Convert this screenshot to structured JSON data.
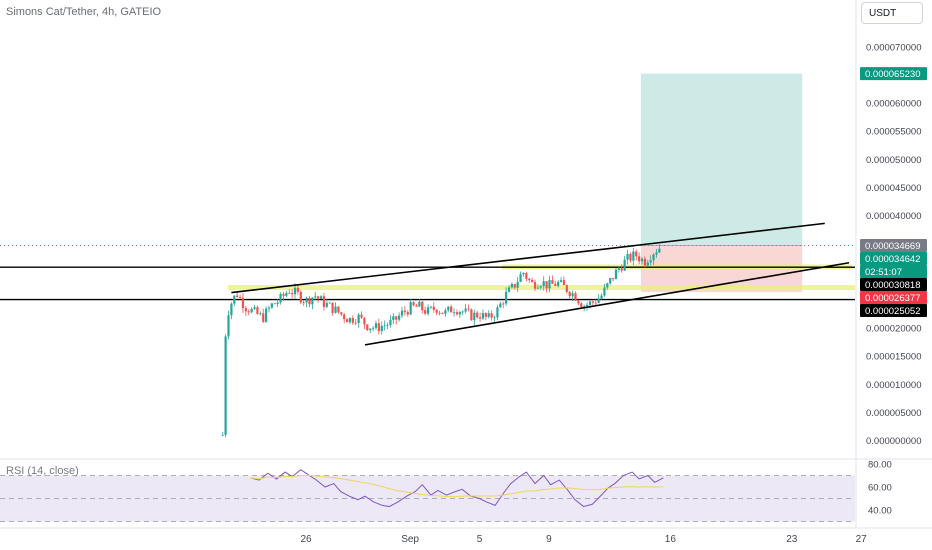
{
  "header": {
    "symbol_title": "Simons Cat/Tether, 4h, GATEIO",
    "currency_button": "USDT",
    "rsi_title": "RSI (14, close)"
  },
  "colors": {
    "up": "#26a69a",
    "down": "#ef5350",
    "profit_zone": "#cdeae7",
    "loss_zone": "#f9d7d5",
    "rsi_line": "#7e57c2",
    "rsi_ma": "#f0d55b",
    "rsi_band": "#ece8f6",
    "highlight": "#e8f07a"
  },
  "price_axis": {
    "ticks": [
      "0.000070000",
      "0.000065000",
      "0.000060000",
      "0.000055000",
      "0.000050000",
      "0.000045000",
      "0.000040000",
      "0.000035000",
      "0.000030000",
      "0.000025000",
      "0.000020000",
      "0.000015000",
      "0.000010000",
      "0.000005000",
      "0.000000000"
    ]
  },
  "badges": [
    {
      "text": "0.000065230",
      "bg": "#089981",
      "fg": "#ffffff",
      "value": 6.523e-05
    },
    {
      "text": "0.000034669",
      "bg": "#787b86",
      "fg": "#ffffff",
      "value": 3.4669e-05
    },
    {
      "text": "0.000034642",
      "bg": "#089981",
      "fg": "#ffffff",
      "value": 3.4642e-05
    },
    {
      "text": "02:51:07",
      "bg": "#089981",
      "fg": "#ffffff",
      "value": 3.29e-05
    },
    {
      "text": "0.000030818",
      "bg": "#000000",
      "fg": "#ffffff",
      "value": 3.0818e-05
    },
    {
      "text": "0.000026377",
      "bg": "#f23645",
      "fg": "#ffffff",
      "value": 2.6377e-05
    },
    {
      "text": "0.000025052",
      "bg": "#000000",
      "fg": "#ffffff",
      "value": 2.5052e-05
    }
  ],
  "time_axis": {
    "labels": [
      {
        "text": "26",
        "day": 26
      },
      {
        "text": "Sep",
        "day": 32
      },
      {
        "text": "5",
        "day": 36
      },
      {
        "text": "9",
        "day": 40
      },
      {
        "text": "16",
        "day": 47
      },
      {
        "text": "23",
        "day": 54
      },
      {
        "text": "27",
        "day": 58
      }
    ]
  },
  "rsi_axis": {
    "ticks": [
      "80.00",
      "60.00",
      "40.00"
    ]
  },
  "chart_data": {
    "type": "candlestick",
    "title": "Simons Cat/Tether, 4h, GATEIO",
    "x_unit": "days (Aug 1 = day 1, Sep 1 = day 32)",
    "ylim": [
      0,
      7e-05
    ],
    "position": {
      "entry": 3.4669e-05,
      "target": 6.523e-05,
      "stop": 2.6377e-05,
      "start_day": 45.3,
      "end_day": 54.6
    },
    "horizontal_levels": [
      3.0818e-05,
      2.5052e-05
    ],
    "highlight_levels": [
      3.085e-05,
      2.72e-05
    ],
    "trendlines": [
      {
        "from": [
          21.7,
          2.63e-05
        ],
        "to": [
          55.9,
          3.86e-05
        ]
      },
      {
        "from": [
          29.4,
          1.7e-05
        ],
        "to": [
          57.3,
          3.16e-05
        ]
      }
    ],
    "close_path": [
      {
        "day": 21.2,
        "close": 1e-06
      },
      {
        "day": 21.4,
        "close": 2.2e-05
      },
      {
        "day": 21.7,
        "close": 2.45e-05
      },
      {
        "day": 22.0,
        "close": 2.62e-05
      },
      {
        "day": 22.5,
        "close": 2.38e-05
      },
      {
        "day": 23.0,
        "close": 2.28e-05
      },
      {
        "day": 23.5,
        "close": 2.18e-05
      },
      {
        "day": 24.0,
        "close": 2.4e-05
      },
      {
        "day": 24.5,
        "close": 2.5e-05
      },
      {
        "day": 25.0,
        "close": 2.68e-05
      },
      {
        "day": 25.5,
        "close": 2.6e-05
      },
      {
        "day": 26.0,
        "close": 2.48e-05
      },
      {
        "day": 26.5,
        "close": 2.58e-05
      },
      {
        "day": 27.0,
        "close": 2.45e-05
      },
      {
        "day": 27.5,
        "close": 2.36e-05
      },
      {
        "day": 28.0,
        "close": 2.25e-05
      },
      {
        "day": 28.5,
        "close": 2.15e-05
      },
      {
        "day": 29.0,
        "close": 2.2e-05
      },
      {
        "day": 29.5,
        "close": 2.05e-05
      },
      {
        "day": 30.0,
        "close": 2e-05
      },
      {
        "day": 30.5,
        "close": 2.05e-05
      },
      {
        "day": 31.0,
        "close": 2.1e-05
      },
      {
        "day": 31.5,
        "close": 2.25e-05
      },
      {
        "day": 32.0,
        "close": 2.36e-05
      },
      {
        "day": 32.5,
        "close": 2.38e-05
      },
      {
        "day": 33.0,
        "close": 2.28e-05
      },
      {
        "day": 33.5,
        "close": 2.36e-05
      },
      {
        "day": 34.0,
        "close": 2.26e-05
      },
      {
        "day": 34.5,
        "close": 2.36e-05
      },
      {
        "day": 35.0,
        "close": 2.3e-05
      },
      {
        "day": 35.5,
        "close": 2.22e-05
      },
      {
        "day": 36.0,
        "close": 2.24e-05
      },
      {
        "day": 36.5,
        "close": 2.16e-05
      },
      {
        "day": 37.0,
        "close": 2.3e-05
      },
      {
        "day": 37.5,
        "close": 2.58e-05
      },
      {
        "day": 38.0,
        "close": 2.75e-05
      },
      {
        "day": 38.5,
        "close": 3e-05
      },
      {
        "day": 39.0,
        "close": 2.78e-05
      },
      {
        "day": 39.5,
        "close": 2.83e-05
      },
      {
        "day": 40.0,
        "close": 2.75e-05
      },
      {
        "day": 40.5,
        "close": 2.8e-05
      },
      {
        "day": 41.0,
        "close": 2.7e-05
      },
      {
        "day": 41.5,
        "close": 2.58e-05
      },
      {
        "day": 42.0,
        "close": 2.4e-05
      },
      {
        "day": 42.5,
        "close": 2.45e-05
      },
      {
        "day": 43.0,
        "close": 2.56e-05
      },
      {
        "day": 43.5,
        "close": 2.82e-05
      },
      {
        "day": 44.0,
        "close": 3.05e-05
      },
      {
        "day": 44.5,
        "close": 3.22e-05
      },
      {
        "day": 45.0,
        "close": 3.3e-05
      },
      {
        "day": 45.5,
        "close": 3.18e-05
      },
      {
        "day": 46.0,
        "close": 3.35e-05
      },
      {
        "day": 46.5,
        "close": 3.46e-05
      }
    ],
    "rsi": {
      "ylim": [
        25,
        82
      ],
      "band": [
        30,
        70
      ],
      "ma_length": 14,
      "values": [
        {
          "day": 22.8,
          "value": 68
        },
        {
          "day": 23.3,
          "value": 66
        },
        {
          "day": 23.8,
          "value": 72
        },
        {
          "day": 24.3,
          "value": 67
        },
        {
          "day": 24.8,
          "value": 73
        },
        {
          "day": 25.2,
          "value": 69
        },
        {
          "day": 25.7,
          "value": 75
        },
        {
          "day": 26.1,
          "value": 71
        },
        {
          "day": 26.6,
          "value": 66
        },
        {
          "day": 27.1,
          "value": 60
        },
        {
          "day": 27.6,
          "value": 63
        },
        {
          "day": 28.0,
          "value": 56
        },
        {
          "day": 28.5,
          "value": 52
        },
        {
          "day": 29.0,
          "value": 49
        },
        {
          "day": 29.4,
          "value": 52
        },
        {
          "day": 29.9,
          "value": 47
        },
        {
          "day": 30.4,
          "value": 44
        },
        {
          "day": 30.8,
          "value": 43
        },
        {
          "day": 31.3,
          "value": 47
        },
        {
          "day": 31.8,
          "value": 52
        },
        {
          "day": 32.3,
          "value": 56
        },
        {
          "day": 32.7,
          "value": 62
        },
        {
          "day": 33.2,
          "value": 53
        },
        {
          "day": 33.6,
          "value": 57
        },
        {
          "day": 34.1,
          "value": 53
        },
        {
          "day": 34.6,
          "value": 56
        },
        {
          "day": 35.0,
          "value": 58
        },
        {
          "day": 35.5,
          "value": 52
        },
        {
          "day": 36.0,
          "value": 50
        },
        {
          "day": 36.4,
          "value": 47
        },
        {
          "day": 36.9,
          "value": 44
        },
        {
          "day": 37.4,
          "value": 55
        },
        {
          "day": 37.8,
          "value": 63
        },
        {
          "day": 38.3,
          "value": 69
        },
        {
          "day": 38.7,
          "value": 73
        },
        {
          "day": 39.2,
          "value": 63
        },
        {
          "day": 39.7,
          "value": 70
        },
        {
          "day": 40.1,
          "value": 62
        },
        {
          "day": 40.6,
          "value": 66
        },
        {
          "day": 41.1,
          "value": 57
        },
        {
          "day": 41.5,
          "value": 49
        },
        {
          "day": 42.0,
          "value": 43
        },
        {
          "day": 42.5,
          "value": 45
        },
        {
          "day": 42.9,
          "value": 51
        },
        {
          "day": 43.4,
          "value": 59
        },
        {
          "day": 43.8,
          "value": 63
        },
        {
          "day": 44.3,
          "value": 70
        },
        {
          "day": 44.8,
          "value": 73
        },
        {
          "day": 45.2,
          "value": 67
        },
        {
          "day": 45.7,
          "value": 70
        },
        {
          "day": 46.1,
          "value": 64
        },
        {
          "day": 46.6,
          "value": 68
        }
      ]
    }
  }
}
